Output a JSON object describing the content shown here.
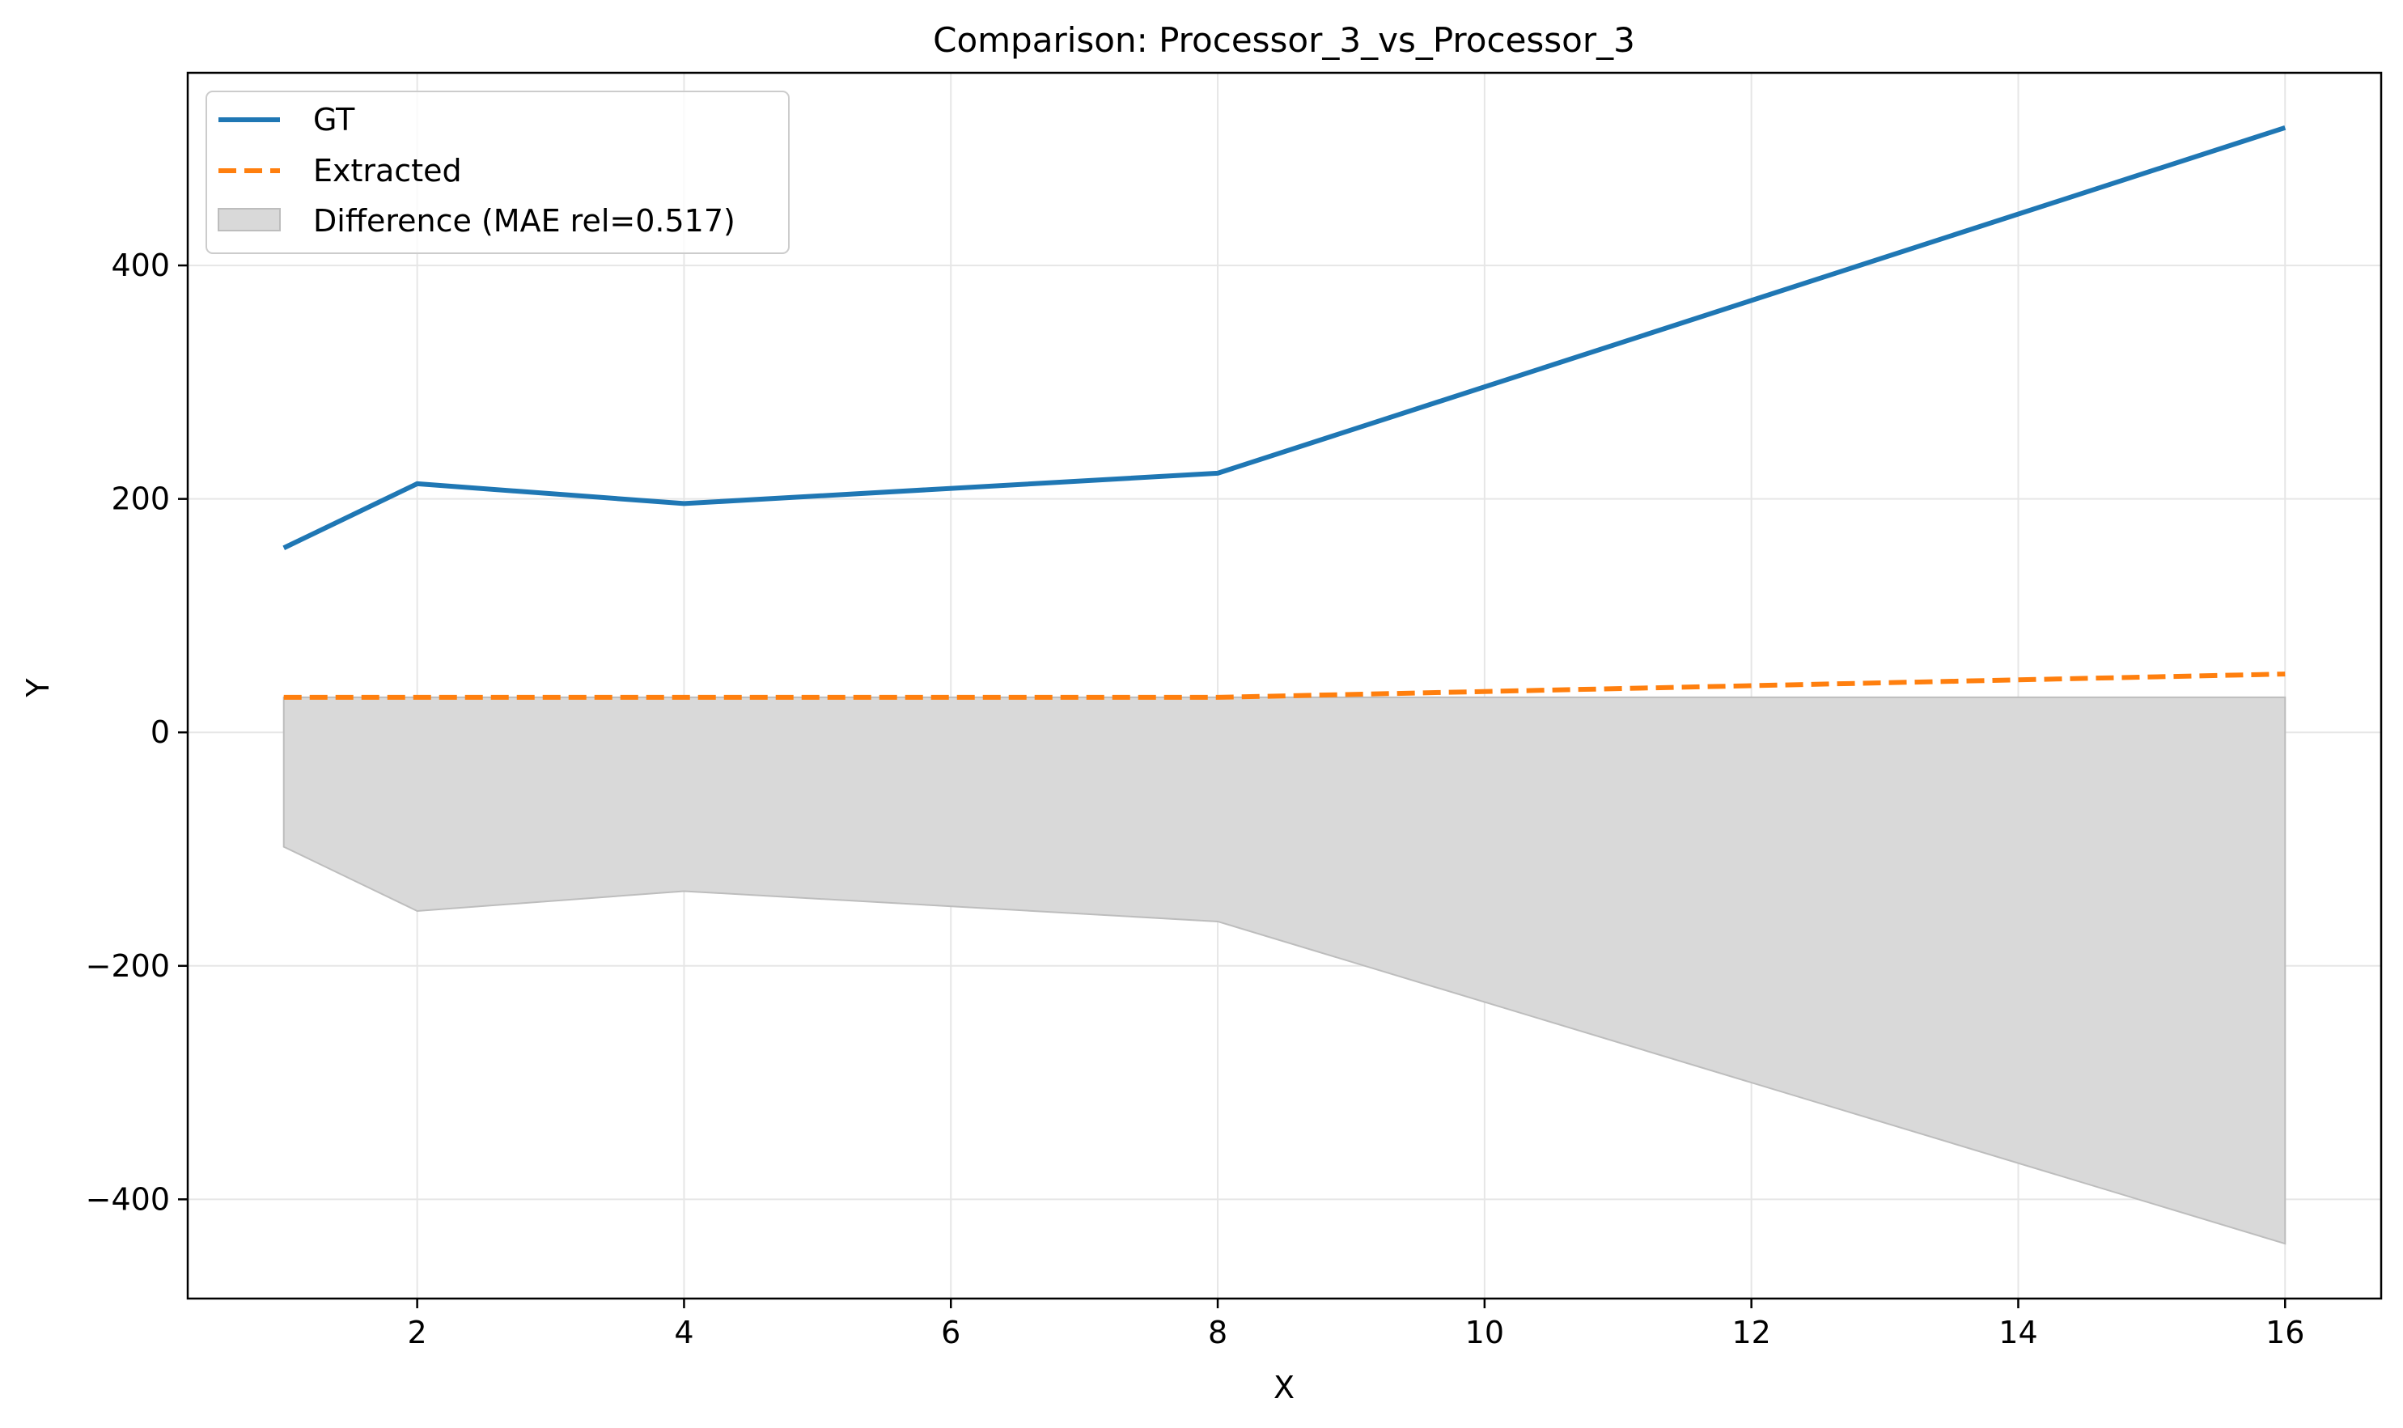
{
  "chart_data": {
    "type": "line",
    "title": "Comparison: Processor_3_vs_Processor_3",
    "xlabel": "X",
    "ylabel": "Y",
    "xlim": [
      0.28,
      16.72
    ],
    "ylim": [
      -485,
      565
    ],
    "x_ticks": [
      2,
      4,
      6,
      8,
      10,
      12,
      14,
      16
    ],
    "y_ticks": [
      -400,
      -200,
      0,
      200,
      400
    ],
    "grid": true,
    "legend_position": "upper-left",
    "series": [
      {
        "name": "GT",
        "style": "solid",
        "color": "#1f77b4",
        "x": [
          1,
          2,
          4,
          8,
          16
        ],
        "y": [
          158,
          213,
          196,
          222,
          518
        ]
      },
      {
        "name": "Extracted",
        "style": "dashed",
        "color": "#ff7f0e",
        "x": [
          1,
          2,
          4,
          8,
          16
        ],
        "y": [
          30,
          30,
          30,
          30,
          50
        ]
      }
    ],
    "fill": {
      "name": "Difference (MAE rel=0.517)",
      "color": "#d9d9d9",
      "x": [
        1,
        2,
        4,
        8,
        16
      ],
      "upper": [
        30,
        30,
        30,
        30,
        30
      ],
      "lower": [
        -98,
        -153,
        -136,
        -162,
        -438
      ]
    }
  }
}
